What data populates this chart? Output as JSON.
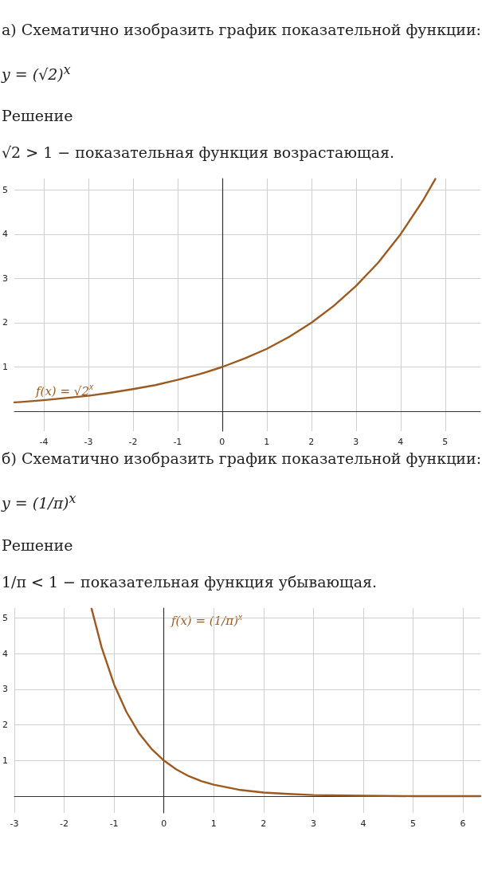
{
  "chart_data": [
    {
      "type": "line",
      "title": "а) Схематично изобразить график показательной функции:",
      "subtitle": "y = (√2)$^{x}$",
      "annotations": [
        "Решение",
        "√2 > 1 − показательная функция возрастающая."
      ],
      "x": [
        -4.66,
        -4.5,
        -4,
        -3.5,
        -3,
        -2.5,
        -2,
        -1.5,
        -1,
        -0.5,
        0,
        0.5,
        1,
        1.5,
        2,
        2.5,
        3,
        3.5,
        4,
        4.5,
        4.78
      ],
      "series": [
        {
          "name": "f(x) = √2$^{x}$",
          "color": "#9c5a1e",
          "values": [
            0.2,
            0.21,
            0.25,
            0.3,
            0.35,
            0.42,
            0.5,
            0.59,
            0.71,
            0.84,
            1,
            1.19,
            1.41,
            1.68,
            2,
            2.38,
            2.83,
            3.36,
            4,
            4.76,
            5.25
          ]
        }
      ],
      "xlim": [
        -4.66,
        5.79
      ],
      "ylim": [
        -0.45,
        5.26
      ],
      "xticks": [
        -4,
        -3,
        -2,
        -1,
        0,
        1,
        2,
        3,
        4,
        5
      ],
      "yticks": [
        1,
        2,
        3,
        4,
        5
      ],
      "grid": true,
      "marker": "none",
      "line_style": "solid"
    },
    {
      "type": "line",
      "title": "б) Схематично изобразить график показательной функции:",
      "subtitle": "y = (1/π)$^{x}$",
      "annotations": [
        "Решение",
        "1/π < 1 − показательная функция убывающая."
      ],
      "x": [
        -1.45,
        -1.25,
        -1,
        -0.75,
        -0.5,
        -0.25,
        0,
        0.25,
        0.5,
        0.75,
        1,
        1.5,
        2,
        2.5,
        3,
        4,
        5,
        6,
        6.35
      ],
      "series": [
        {
          "name": "f(x) = (1/π)$^{x}$",
          "color": "#9c5a1e",
          "values": [
            5.26,
            4.18,
            3.14,
            2.36,
            1.77,
            1.33,
            1,
            0.75,
            0.56,
            0.42,
            0.32,
            0.18,
            0.1,
            0.06,
            0.03,
            0.01,
            0,
            0,
            0
          ]
        }
      ],
      "xlim": [
        -3,
        6.35
      ],
      "ylim": [
        -0.47,
        5.28
      ],
      "xticks": [
        -3,
        -2,
        -1,
        0,
        1,
        2,
        3,
        4,
        5,
        6
      ],
      "yticks": [
        1,
        2,
        3,
        4,
        5
      ],
      "grid": true,
      "marker": "none",
      "line_style": "solid"
    }
  ]
}
